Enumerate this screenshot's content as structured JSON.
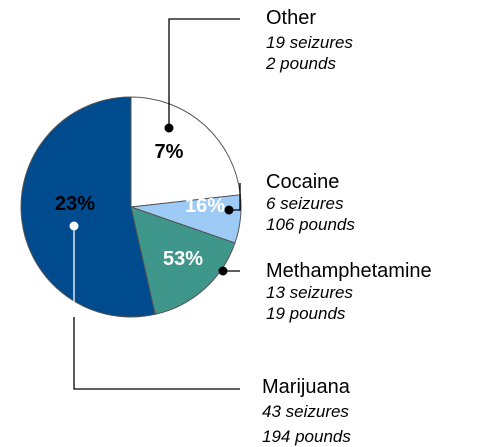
{
  "chart_data": {
    "type": "pie",
    "slices": [
      {
        "name": "Marijuana",
        "percent": 53,
        "label": "53%",
        "seizures": "43 seizures",
        "pounds": "194 pounds",
        "color": "#004a8e",
        "label_color": "#ffffff"
      },
      {
        "name": "Other",
        "percent": 23,
        "label": "23%",
        "seizures": "19 seizures",
        "pounds": "2 pounds",
        "color": "#ffffff",
        "label_color": "#000000"
      },
      {
        "name": "Cocaine",
        "percent": 7,
        "label": "7%",
        "seizures": "6 seizures",
        "pounds": "106 pounds",
        "color": "#9ecbf5",
        "label_color": "#000000"
      },
      {
        "name": "Methamphetamine",
        "percent": 16,
        "label": "16%",
        "seizures": "13 seizures",
        "pounds": "19 pounds",
        "color": "#3f968a",
        "label_color": "#ffffff"
      }
    ],
    "legend": "callouts"
  }
}
